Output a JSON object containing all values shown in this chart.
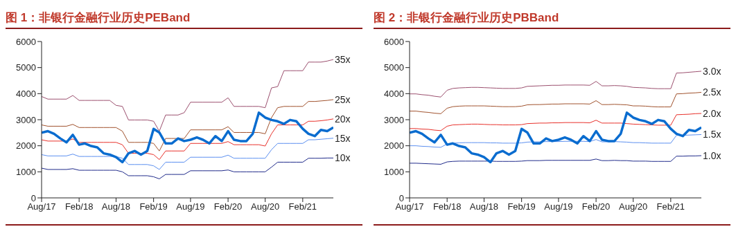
{
  "chart_data": [
    {
      "type": "line",
      "title": "图 1：非银行金融行业历史PEBand",
      "x": [
        "2017-08",
        "2017-09",
        "2017-10",
        "2017-11",
        "2017-12",
        "2018-01",
        "2018-02",
        "2018-03",
        "2018-04",
        "2018-05",
        "2018-06",
        "2018-07",
        "2018-08",
        "2018-09",
        "2018-10",
        "2018-11",
        "2018-12",
        "2019-01",
        "2019-02",
        "2019-03",
        "2019-04",
        "2019-05",
        "2019-06",
        "2019-07",
        "2019-08",
        "2019-09",
        "2019-10",
        "2019-11",
        "2019-12",
        "2020-01",
        "2020-02",
        "2020-03",
        "2020-04",
        "2020-05",
        "2020-06",
        "2020-07",
        "2020-08",
        "2020-09",
        "2020-10",
        "2020-11",
        "2020-12",
        "2021-01",
        "2021-02",
        "2021-03",
        "2021-04",
        "2021-05",
        "2021-06",
        "2021-07"
      ],
      "series": [
        {
          "name": "35x",
          "color": "#9b4f6e",
          "values": [
            3890,
            3790,
            3790,
            3790,
            3790,
            3930,
            3740,
            3740,
            3740,
            3740,
            3740,
            3740,
            3550,
            3510,
            2990,
            2990,
            2990,
            2990,
            2940,
            2560,
            3180,
            3180,
            3180,
            3270,
            3670,
            3670,
            3670,
            3670,
            3670,
            3670,
            3840,
            3510,
            3510,
            3510,
            3510,
            3510,
            3460,
            4220,
            4270,
            4880,
            4880,
            4880,
            4880,
            5210,
            5210,
            5210,
            5250,
            5310
          ]
        },
        {
          "name": "25x",
          "color": "#a0522d",
          "values": [
            2800,
            2750,
            2750,
            2750,
            2750,
            2820,
            2700,
            2700,
            2700,
            2700,
            2700,
            2700,
            2700,
            2560,
            2130,
            2130,
            2130,
            2130,
            2090,
            1800,
            2280,
            2280,
            2280,
            2280,
            2610,
            2610,
            2610,
            2610,
            2610,
            2610,
            2730,
            2510,
            2510,
            2510,
            2510,
            2510,
            2460,
            3080,
            3460,
            3510,
            3510,
            3510,
            3510,
            3700,
            3700,
            3720,
            3740,
            3770
          ]
        },
        {
          "name": "20x",
          "color": "#e8302a",
          "values": [
            2230,
            2180,
            2180,
            2180,
            2180,
            2260,
            2130,
            2130,
            2130,
            2130,
            2130,
            2130,
            2130,
            2040,
            1710,
            1710,
            1710,
            1710,
            1660,
            1470,
            1800,
            1800,
            1800,
            1800,
            2090,
            2090,
            2090,
            2090,
            2090,
            2090,
            2160,
            2040,
            2040,
            2040,
            2040,
            2040,
            1990,
            2460,
            2800,
            2800,
            2800,
            2800,
            2800,
            2940,
            2940,
            2960,
            2990,
            3030
          ]
        },
        {
          "name": "15x",
          "color": "#5b8ff0",
          "values": [
            1660,
            1610,
            1610,
            1610,
            1610,
            1680,
            1590,
            1590,
            1590,
            1590,
            1590,
            1590,
            1590,
            1520,
            1280,
            1280,
            1280,
            1280,
            1230,
            1090,
            1370,
            1370,
            1370,
            1370,
            1560,
            1560,
            1560,
            1560,
            1560,
            1560,
            1640,
            1520,
            1520,
            1520,
            1520,
            1520,
            1520,
            1850,
            2090,
            2090,
            2090,
            2090,
            2090,
            2230,
            2230,
            2250,
            2270,
            2290
          ]
        },
        {
          "name": "10x",
          "color": "#1f2a8a",
          "values": [
            1140,
            1090,
            1090,
            1090,
            1090,
            1120,
            1060,
            1060,
            1060,
            1060,
            1060,
            1060,
            1060,
            1000,
            850,
            850,
            850,
            850,
            810,
            730,
            900,
            900,
            900,
            900,
            1040,
            1040,
            1040,
            1040,
            1040,
            1040,
            1070,
            1000,
            1000,
            1000,
            1000,
            1000,
            1000,
            1180,
            1370,
            1370,
            1370,
            1370,
            1370,
            1520,
            1520,
            1520,
            1530,
            1530
          ]
        },
        {
          "color": "#0a6ccf",
          "values": [
            2500,
            2560,
            2460,
            2280,
            2130,
            2420,
            2040,
            2090,
            1990,
            1940,
            1710,
            1660,
            1560,
            1370,
            1710,
            1800,
            1660,
            1800,
            2650,
            2510,
            2090,
            2090,
            2280,
            2180,
            2230,
            2320,
            2230,
            2090,
            2370,
            2180,
            2560,
            2230,
            2180,
            2180,
            2460,
            3270,
            3080,
            2990,
            2940,
            2840,
            2990,
            2940,
            2650,
            2460,
            2370,
            2610,
            2560,
            2700
          ]
        }
      ],
      "xlim": [
        "2017-08",
        "2021-07"
      ],
      "xticks": [
        {
          "value": "2017-08",
          "label": "Aug/17"
        },
        {
          "value": "2018-02",
          "label": "Feb/18"
        },
        {
          "value": "2018-08",
          "label": "Aug/18"
        },
        {
          "value": "2019-02",
          "label": "Feb/19"
        },
        {
          "value": "2019-08",
          "label": "Aug/19"
        },
        {
          "value": "2020-02",
          "label": "Feb/20"
        },
        {
          "value": "2020-08",
          "label": "Aug/20"
        },
        {
          "value": "2021-02",
          "label": "Feb/21"
        }
      ],
      "ylim": [
        0,
        6000
      ],
      "yticks": [
        0,
        1000,
        2000,
        3000,
        4000,
        5000,
        6000
      ]
    },
    {
      "type": "line",
      "title": "图 2：非银行金融行业历史PBBand",
      "x": [
        "2017-08",
        "2017-09",
        "2017-10",
        "2017-11",
        "2017-12",
        "2018-01",
        "2018-02",
        "2018-03",
        "2018-04",
        "2018-05",
        "2018-06",
        "2018-07",
        "2018-08",
        "2018-09",
        "2018-10",
        "2018-11",
        "2018-12",
        "2019-01",
        "2019-02",
        "2019-03",
        "2019-04",
        "2019-05",
        "2019-06",
        "2019-07",
        "2019-08",
        "2019-09",
        "2019-10",
        "2019-11",
        "2019-12",
        "2020-01",
        "2020-02",
        "2020-03",
        "2020-04",
        "2020-05",
        "2020-06",
        "2020-07",
        "2020-08",
        "2020-09",
        "2020-10",
        "2020-11",
        "2020-12",
        "2021-01",
        "2021-02",
        "2021-03",
        "2021-04",
        "2021-05",
        "2021-06",
        "2021-07"
      ],
      "series": [
        {
          "name": "3.0x",
          "color": "#9b4f6e",
          "values": [
            3990,
            3990,
            3960,
            3940,
            3900,
            3870,
            4130,
            4200,
            4220,
            4230,
            4240,
            4240,
            4230,
            4220,
            4210,
            4200,
            4200,
            4200,
            4220,
            4280,
            4290,
            4300,
            4310,
            4320,
            4320,
            4330,
            4330,
            4330,
            4330,
            4320,
            4470,
            4300,
            4300,
            4310,
            4300,
            4280,
            4240,
            4230,
            4220,
            4200,
            4190,
            4190,
            4190,
            4790,
            4800,
            4820,
            4840,
            4860
          ]
        },
        {
          "name": "2.5x",
          "color": "#a0522d",
          "values": [
            3330,
            3330,
            3300,
            3280,
            3250,
            3230,
            3440,
            3500,
            3520,
            3530,
            3530,
            3530,
            3530,
            3520,
            3510,
            3500,
            3500,
            3500,
            3520,
            3570,
            3580,
            3580,
            3590,
            3600,
            3600,
            3610,
            3610,
            3610,
            3610,
            3600,
            3730,
            3580,
            3580,
            3590,
            3580,
            3570,
            3530,
            3530,
            3520,
            3500,
            3490,
            3490,
            3490,
            3990,
            4000,
            4020,
            4030,
            4050
          ]
        },
        {
          "name": "2.0x",
          "color": "#e8302a",
          "values": [
            2660,
            2660,
            2640,
            2630,
            2600,
            2580,
            2750,
            2800,
            2810,
            2820,
            2830,
            2830,
            2820,
            2810,
            2810,
            2800,
            2800,
            2800,
            2810,
            2850,
            2860,
            2870,
            2870,
            2880,
            2880,
            2890,
            2890,
            2890,
            2890,
            2880,
            2980,
            2870,
            2870,
            2870,
            2870,
            2850,
            2830,
            2820,
            2810,
            2800,
            2790,
            2790,
            2790,
            3190,
            3200,
            3210,
            3230,
            3240
          ]
        },
        {
          "name": "1.5x",
          "color": "#5b8ff0",
          "values": [
            2000,
            2000,
            1980,
            1970,
            1950,
            1940,
            2070,
            2100,
            2110,
            2120,
            2120,
            2120,
            2120,
            2110,
            2110,
            2100,
            2100,
            2100,
            2110,
            2140,
            2150,
            2150,
            2160,
            2160,
            2160,
            2170,
            2170,
            2170,
            2170,
            2160,
            2240,
            2150,
            2150,
            2160,
            2150,
            2140,
            2120,
            2120,
            2110,
            2100,
            2100,
            2100,
            2100,
            2400,
            2400,
            2410,
            2420,
            2430
          ]
        },
        {
          "name": "1.0x",
          "color": "#1f2a8a",
          "values": [
            1330,
            1330,
            1320,
            1310,
            1300,
            1290,
            1380,
            1400,
            1410,
            1410,
            1410,
            1410,
            1410,
            1410,
            1400,
            1400,
            1400,
            1400,
            1410,
            1430,
            1430,
            1430,
            1440,
            1440,
            1440,
            1440,
            1440,
            1440,
            1440,
            1440,
            1490,
            1430,
            1430,
            1440,
            1430,
            1430,
            1410,
            1410,
            1410,
            1400,
            1400,
            1400,
            1400,
            1600,
            1600,
            1610,
            1610,
            1620
          ]
        },
        {
          "color": "#0a6ccf",
          "values": [
            2500,
            2560,
            2460,
            2280,
            2130,
            2420,
            2040,
            2090,
            1990,
            1940,
            1710,
            1660,
            1560,
            1370,
            1710,
            1800,
            1660,
            1800,
            2650,
            2510,
            2090,
            2090,
            2280,
            2180,
            2230,
            2320,
            2230,
            2090,
            2370,
            2180,
            2560,
            2230,
            2180,
            2180,
            2460,
            3270,
            3080,
            2990,
            2940,
            2840,
            2990,
            2940,
            2650,
            2460,
            2370,
            2610,
            2560,
            2700
          ]
        }
      ],
      "xlim": [
        "2017-08",
        "2021-07"
      ],
      "xticks": [
        {
          "value": "2017-08",
          "label": "Aug/17"
        },
        {
          "value": "2018-02",
          "label": "Feb/18"
        },
        {
          "value": "2018-08",
          "label": "Aug/18"
        },
        {
          "value": "2019-02",
          "label": "Feb/19"
        },
        {
          "value": "2019-08",
          "label": "Aug/19"
        },
        {
          "value": "2020-02",
          "label": "Feb/20"
        },
        {
          "value": "2020-08",
          "label": "Aug/20"
        },
        {
          "value": "2021-02",
          "label": "Feb/21"
        }
      ],
      "ylim": [
        0,
        6000
      ],
      "yticks": [
        0,
        1000,
        2000,
        3000,
        4000,
        5000,
        6000
      ]
    }
  ]
}
